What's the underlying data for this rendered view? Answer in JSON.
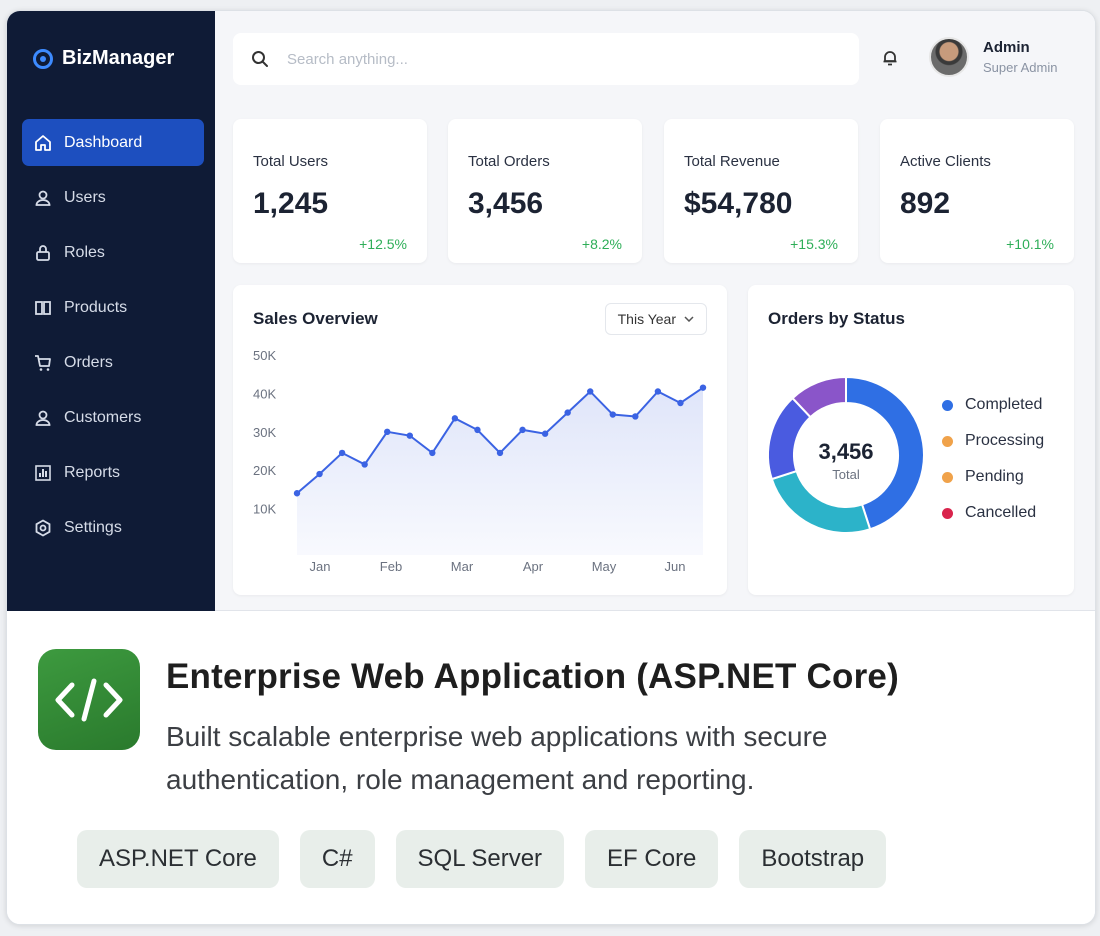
{
  "app": {
    "brand": "BizManager",
    "search": {
      "placeholder": "Search anything..."
    },
    "user": {
      "name": "Admin",
      "role": "Super Admin"
    },
    "sidebar": {
      "items": [
        {
          "label": "Dashboard",
          "icon": "home-icon",
          "active": true
        },
        {
          "label": "Users",
          "icon": "user-icon"
        },
        {
          "label": "Roles",
          "icon": "role-icon"
        },
        {
          "label": "Products",
          "icon": "box-icon"
        },
        {
          "label": "Orders",
          "icon": "cart-icon"
        },
        {
          "label": "Customers",
          "icon": "customer-icon"
        },
        {
          "label": "Reports",
          "icon": "bar-chart-icon"
        },
        {
          "label": "Settings",
          "icon": "gear-icon"
        }
      ]
    },
    "stats": [
      {
        "label": "Total Users",
        "value": "1,245",
        "change": "+12.5%"
      },
      {
        "label": "Total Orders",
        "value": "3,456",
        "change": "+8.2%"
      },
      {
        "label": "Total Revenue",
        "value": "$54,780",
        "change": "+15.3%"
      },
      {
        "label": "Active Clients",
        "value": "892",
        "change": "+10.1%"
      }
    ],
    "sales": {
      "title": "Sales Overview",
      "period": "This Year"
    },
    "orders_status": {
      "title": "Orders by Status",
      "total": "3,456",
      "total_label": "Total"
    },
    "colors": {
      "accent": "#1d4fbf",
      "sidebar": "#0f1b36",
      "positive": "#2eae58"
    }
  },
  "chart_data": [
    {
      "type": "area",
      "title": "Sales Overview",
      "x_ticks": [
        "Jan",
        "Feb",
        "Mar",
        "Apr",
        "May",
        "Jun"
      ],
      "y_ticks": [
        "10K",
        "20K",
        "30K",
        "40K",
        "50K"
      ],
      "ylim": [
        0,
        50000
      ],
      "series": [
        {
          "values": [
            14000,
            19000,
            24500,
            21500,
            30000,
            29000,
            24500,
            33500,
            30500,
            24500,
            30500,
            29500,
            35000,
            40500,
            34500,
            34000,
            40500,
            37500,
            41500
          ]
        }
      ]
    },
    {
      "type": "pie",
      "title": "Orders by Status",
      "categories": [
        "Completed",
        "Processing",
        "Pending",
        "Cancelled"
      ],
      "values": [
        45,
        25,
        18,
        12
      ]
    }
  ],
  "project": {
    "title": "Enterprise Web Application (ASP.NET Core)",
    "description": "Built scalable enterprise web applications with secure authentication, role management and reporting.",
    "tags": [
      "ASP.NET Core",
      "C#",
      "SQL Server",
      "EF Core",
      "Bootstrap"
    ]
  }
}
